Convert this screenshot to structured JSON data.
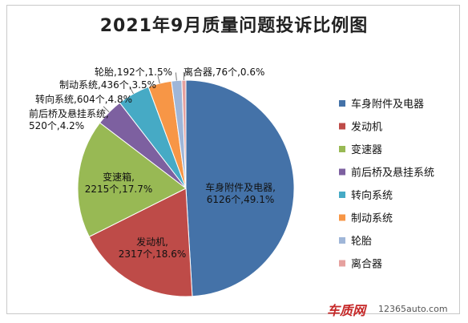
{
  "chart_data": {
    "type": "pie",
    "title": "2021年9月质量问题投诉比例图",
    "slices": [
      {
        "name": "车身附件及电器",
        "value": 6126,
        "percent": 49.1,
        "color": "#4472a8",
        "label_lines": [
          "车身附件及电器,",
          "6126个,49.1%"
        ]
      },
      {
        "name": "发动机",
        "value": 2317,
        "percent": 18.6,
        "color": "#be4b48",
        "label_lines": [
          "发动机,",
          "2317个,18.6%"
        ]
      },
      {
        "name": "变速器",
        "value": 2215,
        "percent": 17.7,
        "color": "#98b954",
        "label_lines": [
          "变速箱,",
          "2215个,17.7%"
        ]
      },
      {
        "name": "前后桥及悬挂系统",
        "value": 520,
        "percent": 4.2,
        "color": "#7d60a0",
        "label_lines": [
          "前后桥及悬挂系统,",
          "520个,4.2%"
        ]
      },
      {
        "name": "转向系统",
        "value": 604,
        "percent": 4.8,
        "color": "#46aac5",
        "label_lines": [
          "转向系统,604个,4.8%"
        ]
      },
      {
        "name": "制动系统",
        "value": 436,
        "percent": 3.5,
        "color": "#f79646",
        "label_lines": [
          "制动系统,436个,3.5%"
        ]
      },
      {
        "name": "轮胎",
        "value": 192,
        "percent": 1.5,
        "color": "#9fb6d8",
        "label_lines": [
          "轮胎,192个,1.5%"
        ]
      },
      {
        "name": "离合器",
        "value": 76,
        "percent": 0.6,
        "color": "#e6a19f",
        "label_lines": [
          "离合器,76个,0.6%"
        ]
      }
    ],
    "legend_position": "right"
  },
  "watermark": {
    "brand": "车质网",
    "site": "12365auto.com"
  }
}
